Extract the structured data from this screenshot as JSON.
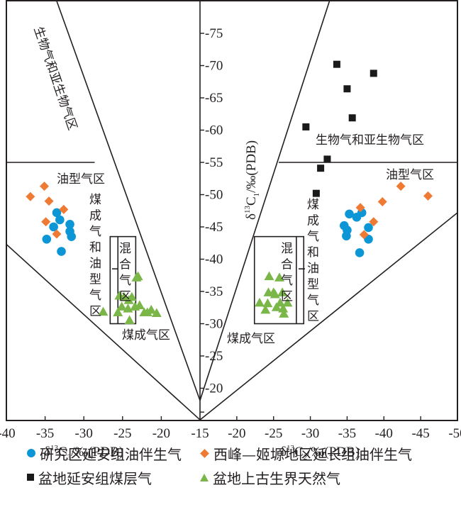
{
  "chart_data": [
    {
      "type": "scatter",
      "panel": "left",
      "xlabel": "δ13C3/‰(PDB)",
      "xlabel_parts": {
        "delta": "δ",
        "sup": "13",
        "base": "C",
        "sub": "3",
        "rest": "/‰(PDB)"
      },
      "xlim": [
        -40,
        -15
      ],
      "xticks": [
        "-40",
        "-35",
        "-30",
        "-25",
        "-20",
        "-15"
      ],
      "xtick_values": [
        -40,
        -35,
        -30,
        -25,
        -20,
        -15
      ],
      "ylim": [
        -15,
        -80
      ],
      "zones": [
        "生物气和亚生物气区",
        "油型气区",
        "煤成气和油型气区",
        "混合气区",
        "煤成气区"
      ],
      "boundaries": {
        "upper_line": [
          [
            -15,
            -18.1
          ],
          [
            -33.5,
            -80
          ]
        ],
        "lower_line": [
          [
            -15,
            -15.1
          ],
          [
            -40,
            -42.3
          ]
        ],
        "horizontal": {
          "y": -55,
          "x_from": -40,
          "x_to": -28.6
        },
        "box_outer": {
          "x": [
            -26.6,
            -23.3
          ],
          "y": [
            -30,
            -43.5
          ]
        },
        "box_inner_x": -25.6
      },
      "series": [
        {
          "name": "研究区延安组油伴生气",
          "marker": "circle",
          "color": "#0d96d6",
          "points": [
            [
              -33.5,
              -47.2
            ],
            [
              -33.1,
              -46.1
            ],
            [
              -33.9,
              -45.0
            ],
            [
              -31.8,
              -45.4
            ],
            [
              -31.8,
              -44.3
            ],
            [
              -31.6,
              -43.5
            ],
            [
              -34.8,
              -43.1
            ],
            [
              -32.9,
              -41.2
            ]
          ]
        },
        {
          "name": "西峰—姬塬地区延长组油伴生气",
          "marker": "diamond",
          "color": "#ee7a34",
          "points": [
            [
              -35.1,
              -51.3
            ],
            [
              -36.9,
              -49.7
            ],
            [
              -34.5,
              -49.0
            ],
            [
              -32.6,
              -47.7
            ],
            [
              -34.9,
              -45.8
            ],
            [
              -33.5,
              -43.9
            ]
          ]
        },
        {
          "name": "盆地上古生界天然气",
          "marker": "triangle",
          "color": "#7ab648",
          "points": [
            [
              -23.2,
              -37.1
            ],
            [
              -23.0,
              -37.3
            ],
            [
              -25.4,
              -34.3
            ],
            [
              -24.8,
              -34.1
            ],
            [
              -24.2,
              -33.6
            ],
            [
              -23.8,
              -34.1
            ],
            [
              -25.1,
              -32.6
            ],
            [
              -24.3,
              -32.3
            ],
            [
              -23.4,
              -32.6
            ],
            [
              -22.8,
              -32.8
            ],
            [
              -21.3,
              -32.1
            ],
            [
              -22.2,
              -31.7
            ],
            [
              -21.8,
              -31.7
            ],
            [
              -20.6,
              -31.6
            ],
            [
              -27.5,
              -31.8
            ],
            [
              -25.6,
              -31.7
            ],
            [
              -24.1,
              -30.5
            ]
          ]
        }
      ]
    },
    {
      "type": "scatter",
      "panel": "right",
      "xlabel": "δ13C2/‰(PDB)",
      "xlabel_parts": {
        "delta": "δ",
        "sup": "13",
        "base": "C",
        "sub": "2",
        "rest": "/‰(PDB)"
      },
      "xlim": [
        -15,
        -50
      ],
      "xticks": [
        "-20",
        "-25",
        "-30",
        "-35",
        "-40",
        "-45",
        "-50"
      ],
      "xtick_values": [
        -20,
        -25,
        -30,
        -35,
        -40,
        -45,
        -50
      ],
      "ylabel": "δ13C1/‰(PDB)",
      "ylabel_parts": {
        "delta": "δ",
        "sup": "13",
        "base": "C",
        "sub": "1",
        "rest": "/‰(PDB)"
      },
      "ylim": [
        -15,
        -80
      ],
      "yticks": [
        "-75",
        "-70",
        "-65",
        "-60",
        "-55",
        "-50",
        "-45",
        "-40",
        "-35",
        "-30",
        "-25",
        "-20"
      ],
      "ytick_values": [
        -75,
        -70,
        -65,
        -60,
        -55,
        -50,
        -45,
        -40,
        -35,
        -30,
        -25,
        -20
      ],
      "zones": [
        "生物气和亚生物气区",
        "油型气区",
        "煤成气和油型气区",
        "混合气区",
        "煤成气区"
      ],
      "boundaries": {
        "upper_line": [
          [
            -15,
            -18.1
          ],
          [
            -32.6,
            -80
          ]
        ],
        "lower_line": [
          [
            -15,
            -15.1
          ],
          [
            -50,
            -47.2
          ]
        ],
        "horizontal": {
          "y": -55,
          "x_from": -25.7,
          "x_to": -50
        },
        "box_outer": {
          "x": [
            -22.4,
            -29.1
          ],
          "y": [
            -30,
            -43.5
          ]
        },
        "box_inner_x": -28.1
      },
      "series": [
        {
          "name": "研究区延安组油伴生气",
          "marker": "circle",
          "color": "#0d96d6",
          "points": [
            [
              -35.3,
              -47.0
            ],
            [
              -36.3,
              -46.5
            ],
            [
              -37.0,
              -47.2
            ],
            [
              -34.6,
              -45.2
            ],
            [
              -35.0,
              -44.5
            ],
            [
              -34.9,
              -43.6
            ],
            [
              -37.9,
              -44.9
            ],
            [
              -37.9,
              -43.1
            ],
            [
              -36.7,
              -41.0
            ]
          ]
        },
        {
          "name": "西峰—姬塬地区延长组油伴生气",
          "marker": "diamond",
          "color": "#ee7a34",
          "points": [
            [
              -42.3,
              -51.3
            ],
            [
              -46.0,
              -49.8
            ],
            [
              -39.8,
              -48.9
            ],
            [
              -36.8,
              -48.0
            ],
            [
              -38.6,
              -45.8
            ],
            [
              -37.3,
              -43.8
            ]
          ]
        },
        {
          "name": "盆地延安组煤层气",
          "marker": "square",
          "color": "#1a1a1a",
          "points": [
            [
              -33.6,
              -70.2
            ],
            [
              -38.6,
              -68.8
            ],
            [
              -35.0,
              -66.4
            ],
            [
              -35.7,
              -61.9
            ],
            [
              -29.4,
              -60.5
            ],
            [
              -32.3,
              -55.5
            ],
            [
              -31.4,
              -54.1
            ],
            [
              -30.8,
              -50.2
            ]
          ]
        },
        {
          "name": "盆地上古生界天然气",
          "marker": "triangle",
          "color": "#7ab648",
          "points": [
            [
              -24.4,
              -37.3
            ],
            [
              -25.8,
              -37.1
            ],
            [
              -24.3,
              -34.8
            ],
            [
              -25.0,
              -34.8
            ],
            [
              -25.2,
              -34.5
            ],
            [
              -26.2,
              -34.8
            ],
            [
              -23.1,
              -33.2
            ],
            [
              -24.2,
              -33.1
            ],
            [
              -23.9,
              -32.1
            ],
            [
              -25.9,
              -33.2
            ],
            [
              -26.9,
              -33.2
            ],
            [
              -25.4,
              -32.5
            ],
            [
              -26.3,
              -32.3
            ],
            [
              -26.4,
              -31.5
            ]
          ]
        }
      ]
    }
  ],
  "labels": {
    "left_bio_zone": "生物气和亚生物气区",
    "left_oil_zone": "油型气区",
    "left_coal_oil_zone": "煤成气和油型气区",
    "left_mixed_zone": "混合气区",
    "left_coal_zone": "煤成气区",
    "right_bio_zone": "生物气和亚生物气区",
    "right_oil_zone": "油型气区",
    "right_coal_oil_zone": "煤成气和油型气区",
    "right_mixed_zone": "混合气区",
    "right_coal_zone": "煤成气区"
  },
  "legend": [
    {
      "label": "研究区延安组油伴生气",
      "marker": "circle",
      "color": "#0d96d6"
    },
    {
      "label": "西峰—姬塬地区延长组油伴生气",
      "marker": "diamond",
      "color": "#ee7a34"
    },
    {
      "label": "盆地延安组煤层气",
      "marker": "square",
      "color": "#1a1a1a"
    },
    {
      "label": "盆地上古生界天然气",
      "marker": "triangle",
      "color": "#7ab648"
    }
  ]
}
